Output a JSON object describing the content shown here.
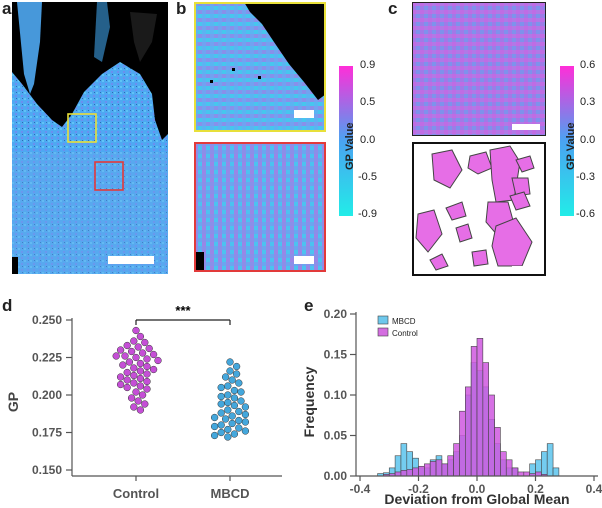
{
  "panels": {
    "a": "a",
    "b": "b",
    "c": "c",
    "d": "d",
    "e": "e"
  },
  "colors": {
    "cyan": "#34e0f0",
    "blue": "#46a6f0",
    "magenta": "#e24be8",
    "frame_yellow": "#e8e03a",
    "frame_red": "#e23a3a",
    "control": "#c54fd6",
    "mbcd": "#44a7dc"
  },
  "colorbar_b": {
    "title": "GP Value",
    "ticks": [
      "0.9",
      "0.5",
      "0.0",
      "-0.5",
      "-0.9"
    ]
  },
  "colorbar_c": {
    "title": "GP Value",
    "ticks": [
      "0.6",
      "0.3",
      "0.0",
      "-0.3",
      "-0.6"
    ]
  },
  "chart_data": [
    {
      "panel": "d",
      "type": "scatter",
      "title": "",
      "xlabel": "",
      "ylabel": "GP",
      "categories": [
        "Control",
        "MBCD"
      ],
      "ylim": [
        0.15,
        0.25
      ],
      "yticks": [
        "0.250",
        "0.225",
        "0.200",
        "0.175",
        "0.150"
      ],
      "significance": "***",
      "series": [
        {
          "name": "Control",
          "values": [
            0.243,
            0.239,
            0.236,
            0.235,
            0.233,
            0.232,
            0.231,
            0.23,
            0.229,
            0.228,
            0.227,
            0.226,
            0.226,
            0.225,
            0.224,
            0.223,
            0.222,
            0.221,
            0.22,
            0.219,
            0.218,
            0.217,
            0.216,
            0.215,
            0.214,
            0.213,
            0.212,
            0.211,
            0.21,
            0.209,
            0.208,
            0.207,
            0.206,
            0.205,
            0.204,
            0.202,
            0.2,
            0.198,
            0.196,
            0.194,
            0.192,
            0.19
          ]
        },
        {
          "name": "MBCD",
          "values": [
            0.222,
            0.219,
            0.216,
            0.214,
            0.212,
            0.21,
            0.208,
            0.206,
            0.205,
            0.203,
            0.202,
            0.2,
            0.199,
            0.198,
            0.196,
            0.195,
            0.194,
            0.193,
            0.192,
            0.19,
            0.189,
            0.188,
            0.187,
            0.186,
            0.185,
            0.184,
            0.183,
            0.182,
            0.181,
            0.18,
            0.179,
            0.178,
            0.177,
            0.176,
            0.175,
            0.174,
            0.173,
            0.172
          ]
        }
      ]
    },
    {
      "panel": "e",
      "type": "bar",
      "title": "",
      "xlabel": "Deviation from Global Mean",
      "ylabel": "Frequency",
      "xlim": [
        -0.4,
        0.4
      ],
      "ylim": [
        0,
        0.2
      ],
      "xticks": [
        "-0.4",
        "-0.2",
        "0.0",
        "0.2",
        "0.4"
      ],
      "yticks": [
        "0.20",
        "0.15",
        "0.10",
        "0.05",
        "0.00"
      ],
      "legend": {
        "position": "top-left",
        "entries": [
          "MBCD",
          "Control"
        ]
      },
      "bin_width": 0.02,
      "bin_starts": [
        -0.36,
        -0.34,
        -0.32,
        -0.3,
        -0.28,
        -0.26,
        -0.24,
        -0.22,
        -0.2,
        -0.18,
        -0.16,
        -0.14,
        -0.12,
        -0.1,
        -0.08,
        -0.06,
        -0.04,
        -0.02,
        0.0,
        0.02,
        0.04,
        0.06,
        0.08,
        0.1,
        0.12,
        0.14,
        0.16,
        0.18,
        0.2,
        0.22,
        0.24,
        0.26,
        0.28
      ],
      "series": [
        {
          "name": "MBCD",
          "values": [
            0.0,
            0.003,
            0.004,
            0.01,
            0.025,
            0.04,
            0.03,
            0.022,
            0.01,
            0.01,
            0.02,
            0.025,
            0.015,
            0.02,
            0.03,
            0.05,
            0.1,
            0.14,
            0.13,
            0.11,
            0.07,
            0.04,
            0.02,
            0.01,
            0.01,
            0.0,
            0.0,
            0.015,
            0.02,
            0.03,
            0.04,
            0.01,
            0.0
          ]
        },
        {
          "name": "Control",
          "values": [
            0.0,
            0.0,
            0.002,
            0.003,
            0.005,
            0.007,
            0.008,
            0.01,
            0.012,
            0.015,
            0.018,
            0.02,
            0.015,
            0.025,
            0.04,
            0.08,
            0.11,
            0.16,
            0.17,
            0.14,
            0.1,
            0.06,
            0.03,
            0.02,
            0.01,
            0.005,
            0.005,
            0.003,
            0.005,
            0.002,
            0.0,
            0.0,
            0.0
          ]
        }
      ]
    }
  ]
}
